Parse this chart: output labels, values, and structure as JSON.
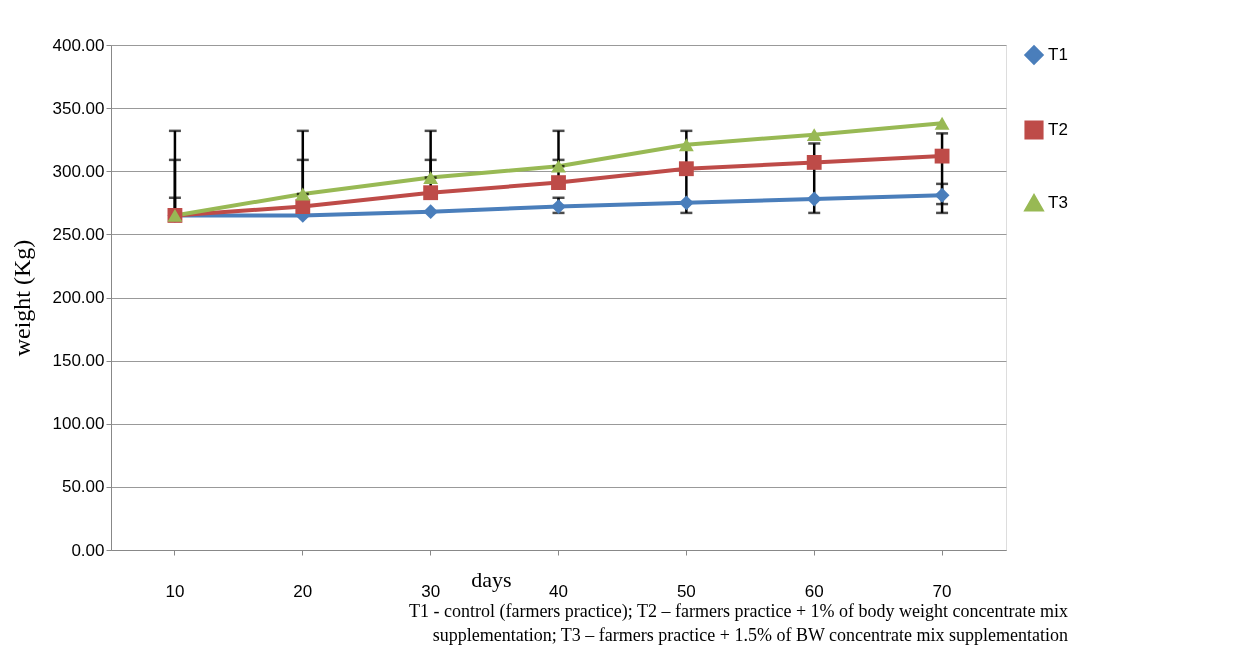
{
  "chart_data": {
    "type": "line",
    "xlabel": "days",
    "ylabel": "weight (Kg)",
    "categories": [
      "10",
      "20",
      "30",
      "40",
      "50",
      "60",
      "70"
    ],
    "series": [
      {
        "name": "T1",
        "color": "#4a7ebb",
        "marker": "diamond",
        "values": [
          265,
          265,
          268,
          272,
          275,
          278,
          281
        ],
        "errors": [
          [
            265,
            279
          ],
          null,
          null,
          [
            267,
            279
          ],
          [
            267,
            332
          ],
          [
            267,
            322
          ],
          [
            274,
            330
          ]
        ]
      },
      {
        "name": "T2",
        "color": "#be4b48",
        "marker": "square",
        "values": [
          265,
          272,
          283,
          291,
          302,
          307,
          312
        ],
        "errors": [
          [
            265,
            309
          ],
          [
            272,
            309
          ],
          [
            283,
            309
          ],
          [
            291,
            309
          ],
          null,
          null,
          [
            267,
            290
          ]
        ]
      },
      {
        "name": "T3",
        "color": "#98b954",
        "marker": "triangle",
        "values": [
          265,
          282,
          295,
          304,
          321,
          329,
          338
        ],
        "errors": [
          [
            265,
            332
          ],
          [
            282,
            332
          ],
          [
            295,
            332
          ],
          [
            304,
            332
          ],
          null,
          null,
          null
        ]
      }
    ],
    "ylim": [
      0,
      400
    ],
    "yticks": [
      {
        "value": 0,
        "label": "0.00"
      },
      {
        "value": 50,
        "label": "50.00"
      },
      {
        "value": 100,
        "label": "100.00"
      },
      {
        "value": 150,
        "label": "150.00"
      },
      {
        "value": 200,
        "label": "200.00"
      },
      {
        "value": 250,
        "label": "250.00"
      },
      {
        "value": 300,
        "label": "300.00"
      },
      {
        "value": 350,
        "label": "350.00"
      },
      {
        "value": 400,
        "label": "400.00"
      }
    ],
    "grid": "y",
    "legend": "right",
    "line_style": "solid",
    "annotations": [
      "T1 - control (farmers practice); T2 – farmers practice + 1% of body weight  concentrate mix supplementation; T3 – farmers practice + 1.5% of BW concentrate mix supplementation"
    ]
  }
}
